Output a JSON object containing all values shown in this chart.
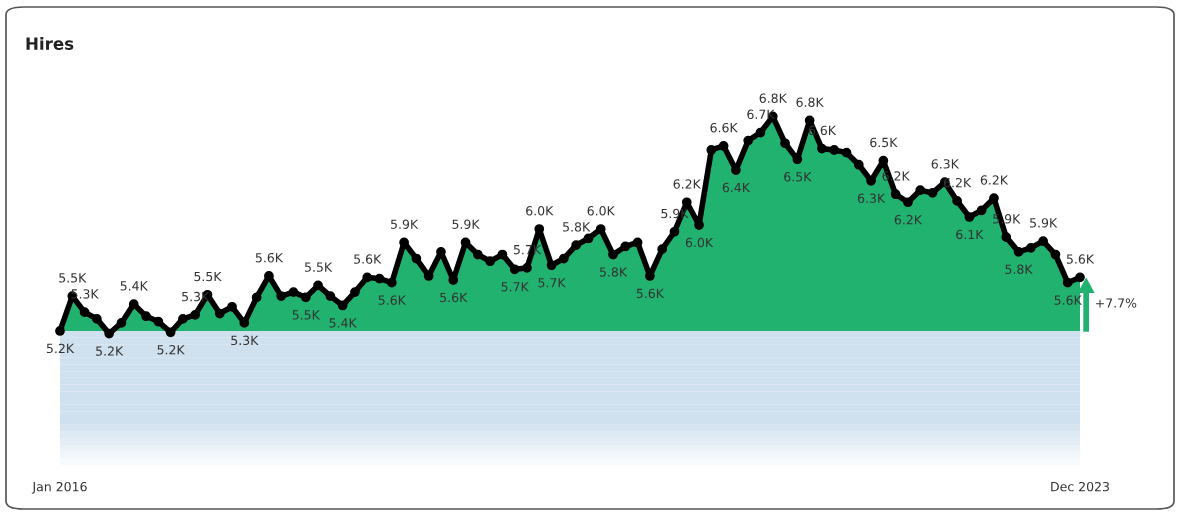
{
  "chart_data": {
    "type": "area",
    "title": "Hires",
    "categories": [
      "Jan 2016",
      null,
      null,
      null,
      null,
      null,
      null,
      null,
      null,
      null,
      null,
      null,
      null,
      null,
      null,
      null,
      null,
      null,
      null,
      null,
      null,
      null,
      null,
      null,
      null,
      null,
      null,
      null,
      null,
      null,
      null,
      null,
      null,
      null,
      null,
      null,
      null,
      null,
      null,
      null,
      null,
      null,
      null,
      null,
      null,
      null,
      null,
      null,
      null,
      null,
      null,
      null,
      null,
      null,
      null,
      null,
      null,
      null,
      null,
      null,
      null,
      null,
      null,
      null,
      null,
      null,
      null,
      null,
      null,
      null,
      null,
      null,
      null,
      null,
      null,
      null,
      null,
      null,
      null,
      null,
      null,
      null,
      null,
      "Dec 2023"
    ],
    "series": [
      {
        "color": "#21b26f",
        "values": [
          5.2,
          5.46,
          5.34,
          5.29,
          5.18,
          5.26,
          5.4,
          5.31,
          5.27,
          5.19,
          5.29,
          5.32,
          5.47,
          5.33,
          5.38,
          5.26,
          5.45,
          5.61,
          5.46,
          5.49,
          5.45,
          5.54,
          5.46,
          5.39,
          5.49,
          5.6,
          5.59,
          5.56,
          5.86,
          5.74,
          5.61,
          5.79,
          5.58,
          5.86,
          5.77,
          5.72,
          5.77,
          5.66,
          5.67,
          5.96,
          5.69,
          5.74,
          5.84,
          5.89,
          5.96,
          5.77,
          5.83,
          5.86,
          5.61,
          5.81,
          5.94,
          6.16,
          5.99,
          6.55,
          6.58,
          6.4,
          6.62,
          6.68,
          6.8,
          6.6,
          6.48,
          6.77,
          6.56,
          6.55,
          6.53,
          6.44,
          6.32,
          6.47,
          6.22,
          6.16,
          6.25,
          6.23,
          6.31,
          6.17,
          6.05,
          6.1,
          6.19,
          5.9,
          5.79,
          5.82,
          5.87,
          5.77,
          5.56,
          5.6
        ],
        "value_labels": [
          "5.2K",
          "5.5K",
          "5.3K",
          null,
          "5.2K",
          null,
          "5.4K",
          null,
          null,
          "5.2K",
          null,
          "5.3K",
          "5.5K",
          null,
          null,
          "5.3K",
          null,
          "5.6K",
          null,
          null,
          "5.5K",
          "5.5K",
          null,
          "5.4K",
          null,
          "5.6K",
          null,
          "5.6K",
          "5.9K",
          null,
          null,
          null,
          "5.6K",
          "5.9K",
          null,
          null,
          null,
          "5.7K",
          "5.7K",
          "6.0K",
          "5.7K",
          null,
          "5.8K",
          null,
          "6.0K",
          "5.8K",
          null,
          null,
          "5.6K",
          null,
          "5.9K",
          "6.2K",
          "6.0K",
          null,
          "6.6K",
          "6.4K",
          null,
          "6.7K",
          "6.8K",
          null,
          "6.5K",
          "6.8K",
          "6.6K",
          null,
          null,
          null,
          "6.3K",
          "6.5K",
          "6.2K",
          "6.2K",
          null,
          null,
          "6.3K",
          "6.2K",
          "6.1K",
          null,
          "6.2K",
          "5.9K",
          "5.8K",
          null,
          "5.9K",
          null,
          "5.6K",
          "5.6K"
        ]
      }
    ],
    "annotations": [
      "+7.7%"
    ],
    "marker": "circle",
    "line_style": "solid",
    "tick_labels": "x",
    "grid": false,
    "legend": false
  }
}
